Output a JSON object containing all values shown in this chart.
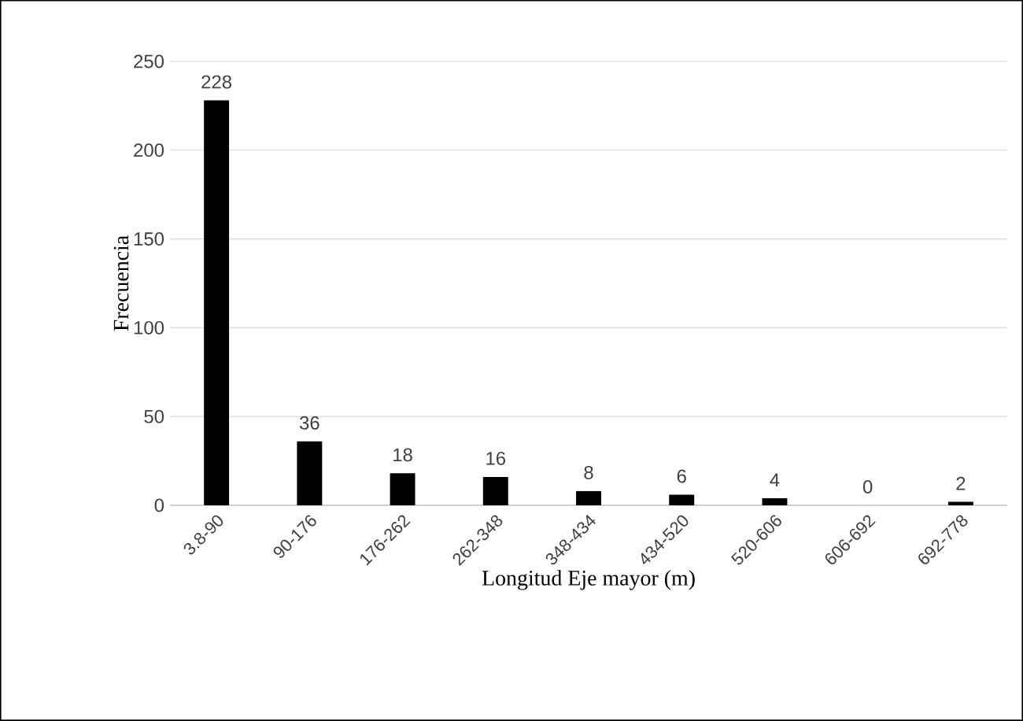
{
  "chart_data": {
    "type": "bar",
    "xlabel": "Longitud Eje mayor (m)",
    "ylabel": "Frecuencia",
    "categories": [
      "3.8-90",
      "90-176",
      "176-262",
      "262-348",
      "348-434",
      "434-520",
      "520-606",
      "606-692",
      "692-778"
    ],
    "values": [
      228,
      36,
      18,
      16,
      8,
      6,
      4,
      0,
      2
    ],
    "color": "#000000",
    "ylim": [
      0,
      250
    ],
    "yticks": [
      0,
      50,
      100,
      150,
      200,
      250
    ],
    "grid": "y",
    "data_labels": true
  }
}
